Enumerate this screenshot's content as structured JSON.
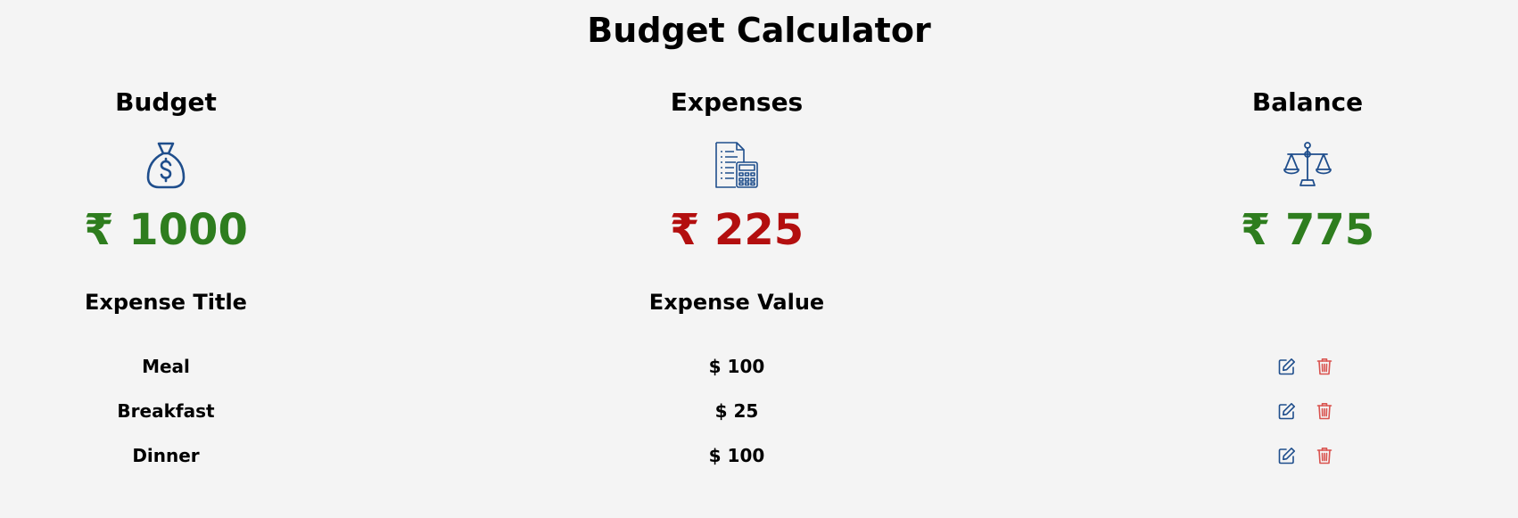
{
  "app": {
    "title": "Budget Calculator"
  },
  "cards": [
    {
      "label": "Budget",
      "icon": "money-bag-icon",
      "amount": "₹ 1000",
      "color": "#2e7d1e"
    },
    {
      "label": "Expenses",
      "icon": "invoice-calculator-icon",
      "amount": "₹ 225",
      "color": "#b30f0f"
    },
    {
      "label": "Balance",
      "icon": "balance-scale-icon",
      "amount": "₹ 775",
      "color": "#2e7d1e"
    }
  ],
  "table": {
    "headers": [
      "Expense Title",
      "Expense Value"
    ],
    "rows": [
      {
        "title": "Meal",
        "value": "$ 100"
      },
      {
        "title": "Breakfast",
        "value": "$ 25"
      },
      {
        "title": "Dinner",
        "value": "$ 100"
      }
    ],
    "actions": {
      "edit_icon": "edit-icon",
      "delete_icon": "trash-icon"
    }
  },
  "colors": {
    "icon_blue": "#1f4e8c",
    "delete_red": "#d9534f",
    "background": "#f4f4f4"
  }
}
